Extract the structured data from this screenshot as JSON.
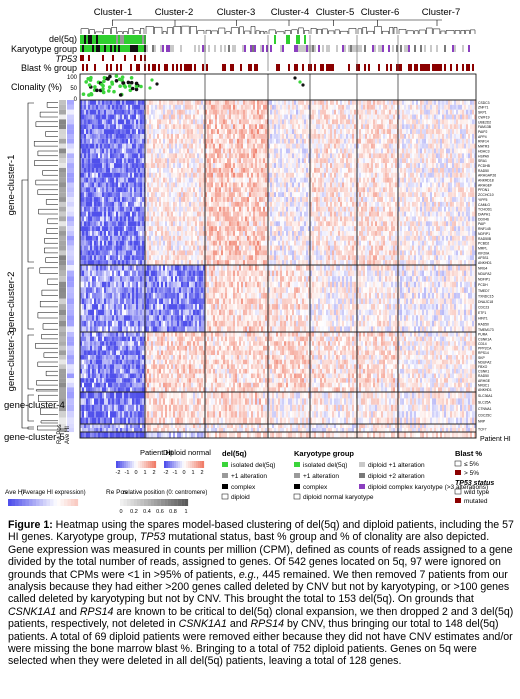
{
  "figure": {
    "clusters": [
      "Cluster-1",
      "Cluster-2",
      "Cluster-3",
      "Cluster-4",
      "Cluster-5",
      "Cluster-6",
      "Cluster-7"
    ],
    "annotation_rows": [
      "del(5q)",
      "Karyotype group",
      "TP53",
      "Blast % group"
    ],
    "clonality_label": "Clonality (%)",
    "clonality_ticks": [
      "100",
      "50",
      "0"
    ],
    "gene_clusters": [
      "gene-cluster-1",
      "gene-cluster-2",
      "gene-cluster-3",
      "gene-cluster-4",
      "gene-cluster-5"
    ],
    "bottom_left_labels": [
      "Re Pos",
      "Ave HI"
    ],
    "patient_hi_label": "Patient HI",
    "gene_groups": [
      [
        "CSDC3",
        "ZNF71",
        "SKP1",
        "CWF19",
        "UBE2D2",
        "FAM13B",
        "PAIP2",
        "APP4",
        "RNF14",
        "MATR3",
        "HDAC3",
        "HSPA9",
        "SRA1",
        "PCDHB",
        "RAD50",
        "ARHGAP26",
        "ANKRD18",
        "ARHGEF",
        "PFDN1",
        "ZCCHC10",
        "YIPF5",
        "CAMLG",
        "TCHOD1",
        "DIAPH1",
        "DDX46",
        "PAIP",
        "RNF145",
        "NDFIP1",
        "RAD50B",
        "PCBD2",
        "MRPL",
        "KIF20A",
        "AP3S1",
        "ANKHD1"
      ],
      [
        "NRG4",
        "NDUFA2",
        "NDFIP1",
        "PCDH",
        "TMED7",
        "TXNDC15",
        "DNAJC18",
        "CDC23",
        "ETF1",
        "HINT1",
        "RAD50",
        "TMEM173"
      ],
      [
        "PURA",
        "CSNK1A",
        "CD14",
        "PPP2CA",
        "RPS14",
        "SKP",
        "NDUFA2",
        "FBXO",
        "CSNK1",
        "RAD50",
        "ARHGE",
        "NR3C1",
        "ANKHD1"
      ],
      [
        "SLC36A1",
        "SLC25A",
        "CTNNA1",
        "CDC25C",
        "NRP"
      ],
      [
        "TCF7"
      ]
    ],
    "legends": {
      "patient_hi": {
        "title": "Patient HI",
        "ticks": [
          "-2",
          "-1",
          "0",
          "1",
          "2"
        ]
      },
      "diploid_normal": {
        "title": "Diploid normal",
        "ticks": [
          "-2",
          "-1",
          "0",
          "1",
          "2"
        ]
      },
      "ave_hi": {
        "title": "Ave HI",
        "note": "(Average HI expression)"
      },
      "re_pos": {
        "title": "Re Pos",
        "note": "relative position (0: centromere)",
        "ticks": [
          "0",
          "0.2",
          "0.4",
          "0.6",
          "0.8",
          "1"
        ]
      },
      "del5q": {
        "title": "del(5q)",
        "items": [
          "isolated del(5q)",
          "+1 alteration",
          "complex",
          "diploid"
        ]
      },
      "karyotype": {
        "title": "Karyotype group",
        "items": [
          "isolated del(5q)",
          "+1 alteration",
          "complex",
          "diploid normal karyotype",
          "diploid +1 alteration",
          "diploid +2 alteration",
          "diploid complex karyotype (>3 alterations)"
        ]
      },
      "blast": {
        "title": "Blast %",
        "items": [
          "≤ 5%",
          "> 5%"
        ]
      },
      "tp53": {
        "title": "TP53 status",
        "items": [
          "wild type",
          "mutated"
        ]
      }
    }
  },
  "caption": {
    "label": "Figure 1:",
    "text_1": " Heatmap using the spares model-based clustering of del(5q) and diploid patients, including the 57 HI genes. Karyotype group, ",
    "tp53_1": "TP53",
    "text_2": " mutational status, bast % group and % of clonality are also depicted. Gene expression was measured in counts per million (CPM), defined as counts of reads assigned to a gene divided by the total number of reads, assigned to genes. Of 542 genes located on 5q, 97 were ignored on grounds that CPMs were <1 in >95% of patients, ",
    "eg": "e.g.,",
    "text_3": " 445 remained. We then removed 7 patients from our analysis because they had either >200 genes called deleted by CNV but not by karyotyping, or >100 genes called deleted by karyotyping but not by CNV. This brought the total to 153 del(5q). On grounds that ",
    "gene_a": "CSNK1A1",
    "and_1": " and ",
    "gene_b": "RPS14",
    "text_4": " are known to be critical to del(5q) clonal expansion, we then dropped 2 and 3 del(5q) patients, respectively, not deleted in ",
    "gene_c": "CSNK1A1",
    "and_2": " and ",
    "gene_d": "RPS14",
    "text_5": " by CNV, thus bringing our total to 148 del(5q) patients. A total of 69 diploid patients were removed either because they did not have CNV estimates and/or were missing the bone marrow blast %. Bringing to a total of 752 diploid patients. Genes on 5q were selected when they were deleted in all del(5q) patients, leaving a total of 128 genes."
  }
}
